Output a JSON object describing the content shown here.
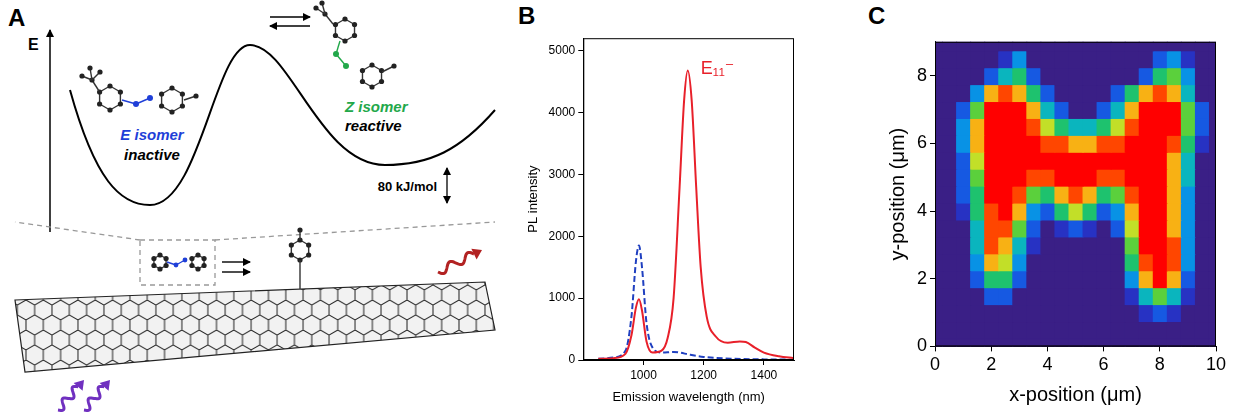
{
  "diagram": {
    "panel": "A",
    "axis_label": "E",
    "states": [
      {
        "name": "E isomer",
        "state": "inactive",
        "color": "#1f3fd8"
      },
      {
        "name": "Z isomer",
        "state": "reactive",
        "color": "#22a84a"
      }
    ],
    "barrier": "80 kJ/mol"
  },
  "chart_data": [
    {
      "type": "line",
      "panel": "B",
      "x_label": "Emission wavelength (nm)",
      "y_label": "PL intensity",
      "xlim": [
        800,
        1500
      ],
      "xticks": [
        1000,
        1200,
        1400
      ],
      "ylim": [
        0,
        5200
      ],
      "yticks": [
        0,
        1000,
        2000,
        3000,
        4000,
        5000
      ],
      "grid": false,
      "series": [
        {
          "color": "#e8202a",
          "line_style": "solid",
          "x": [
            850,
            900,
            940,
            960,
            975,
            985,
            995,
            1010,
            1030,
            1060,
            1080,
            1100,
            1120,
            1135,
            1147,
            1160,
            1175,
            1190,
            1210,
            1240,
            1280,
            1320,
            1340,
            1370,
            1400,
            1450,
            1500
          ],
          "values": [
            20,
            30,
            100,
            400,
            850,
            980,
            800,
            300,
            120,
            150,
            350,
            1000,
            2800,
            4200,
            4680,
            4200,
            2800,
            1500,
            700,
            380,
            280,
            300,
            290,
            200,
            120,
            60,
            30
          ]
        },
        {
          "color": "#2040c0",
          "line_style": "dashed",
          "x": [
            850,
            900,
            940,
            960,
            975,
            985,
            995,
            1010,
            1030,
            1060,
            1100,
            1120,
            1150,
            1200,
            1300,
            1400,
            1500
          ],
          "values": [
            20,
            40,
            150,
            700,
            1600,
            1850,
            1500,
            600,
            200,
            120,
            130,
            120,
            90,
            50,
            20,
            10,
            5
          ]
        }
      ],
      "annotations": [
        {
          "text": "E₁₁⁻",
          "x": 1190,
          "y": 4700,
          "color": "#e8202a"
        }
      ]
    },
    {
      "type": "heatmap",
      "panel": "C",
      "x_label": "x-position (μm)",
      "y_label": "y-position (μm)",
      "xlim": [
        0,
        10
      ],
      "xticks": [
        0,
        2,
        4,
        6,
        8,
        10
      ],
      "ylim": [
        0,
        9
      ],
      "yticks": [
        0,
        2,
        4,
        6,
        8
      ],
      "grid": false,
      "x": [
        0,
        0.5,
        1,
        1.5,
        2,
        2.5,
        3,
        3.5,
        4,
        4.5,
        5,
        5.5,
        6,
        6.5,
        7,
        7.5,
        8,
        8.5,
        9,
        9.5,
        10
      ],
      "y": [
        0,
        0.5,
        1,
        1.5,
        2,
        2.5,
        3,
        3.5,
        4,
        4.5,
        5,
        5.5,
        6,
        6.5,
        7,
        7.5,
        8,
        8.5,
        9
      ],
      "zlim": [
        0,
        10
      ],
      "cells": [
        [
          0,
          0,
          0,
          0,
          0,
          0,
          0,
          0,
          0,
          0,
          0,
          0,
          0,
          0,
          0,
          0,
          0,
          0,
          0,
          0,
          0
        ],
        [
          0,
          0,
          0,
          0,
          0,
          0,
          0,
          0,
          0,
          0,
          0,
          0,
          0,
          0,
          0,
          0,
          0,
          0,
          0,
          0,
          0
        ],
        [
          0,
          0,
          0,
          0,
          0,
          0,
          0,
          0,
          0,
          0,
          0,
          0,
          0,
          0,
          0,
          1,
          2,
          1,
          0,
          0,
          0
        ],
        [
          0,
          0,
          0,
          0,
          2,
          2,
          0,
          0,
          0,
          0,
          0,
          0,
          0,
          0,
          1,
          4,
          6,
          4,
          1,
          0,
          0
        ],
        [
          0,
          0,
          0,
          2,
          5,
          5,
          2,
          0,
          0,
          0,
          0,
          0,
          0,
          0,
          3,
          8,
          10,
          8,
          2,
          0,
          0
        ],
        [
          0,
          0,
          0,
          3,
          8,
          7,
          3,
          0,
          0,
          0,
          0,
          0,
          0,
          0,
          5,
          9,
          10,
          9,
          3,
          0,
          0
        ],
        [
          0,
          0,
          0,
          4,
          9,
          8,
          4,
          1,
          0,
          0,
          0,
          0,
          0,
          0,
          6,
          10,
          10,
          9,
          3,
          0,
          0
        ],
        [
          0,
          0,
          0,
          4,
          9,
          9,
          6,
          2,
          0,
          1,
          2,
          1,
          0,
          2,
          7,
          10,
          10,
          8,
          3,
          0,
          0
        ],
        [
          0,
          0,
          1,
          5,
          9,
          10,
          8,
          3,
          2,
          5,
          7,
          5,
          2,
          3,
          8,
          10,
          10,
          8,
          3,
          0,
          0
        ],
        [
          0,
          0,
          2,
          5,
          10,
          10,
          9,
          6,
          5,
          8,
          9,
          8,
          5,
          6,
          9,
          10,
          10,
          8,
          3,
          0,
          0
        ],
        [
          0,
          0,
          2,
          6,
          10,
          10,
          10,
          9,
          9,
          10,
          10,
          10,
          9,
          9,
          10,
          10,
          10,
          8,
          4,
          0,
          0
        ],
        [
          0,
          0,
          2,
          7,
          10,
          10,
          10,
          10,
          10,
          10,
          10,
          10,
          10,
          10,
          10,
          10,
          10,
          8,
          4,
          0,
          0
        ],
        [
          0,
          0,
          3,
          8,
          10,
          10,
          10,
          10,
          9,
          9,
          8,
          8,
          9,
          9,
          10,
          10,
          10,
          9,
          5,
          1,
          0
        ],
        [
          0,
          0,
          3,
          8,
          10,
          10,
          10,
          9,
          7,
          5,
          4,
          4,
          5,
          7,
          9,
          10,
          10,
          10,
          6,
          2,
          0
        ],
        [
          0,
          0,
          2,
          6,
          10,
          10,
          10,
          8,
          4,
          2,
          0,
          0,
          2,
          4,
          8,
          10,
          10,
          10,
          6,
          2,
          0
        ],
        [
          0,
          0,
          0,
          3,
          8,
          9,
          8,
          5,
          2,
          0,
          0,
          0,
          0,
          2,
          5,
          8,
          9,
          8,
          4,
          0,
          0
        ],
        [
          0,
          0,
          0,
          0,
          2,
          4,
          5,
          2,
          0,
          0,
          0,
          0,
          0,
          0,
          0,
          2,
          5,
          6,
          3,
          0,
          0
        ],
        [
          0,
          0,
          0,
          0,
          0,
          1,
          3,
          0,
          0,
          0,
          0,
          0,
          0,
          0,
          0,
          0,
          2,
          3,
          1,
          0,
          0
        ],
        [
          0,
          0,
          0,
          0,
          0,
          0,
          0,
          0,
          0,
          0,
          0,
          0,
          0,
          0,
          0,
          0,
          0,
          0,
          0,
          0,
          0
        ]
      ]
    }
  ]
}
